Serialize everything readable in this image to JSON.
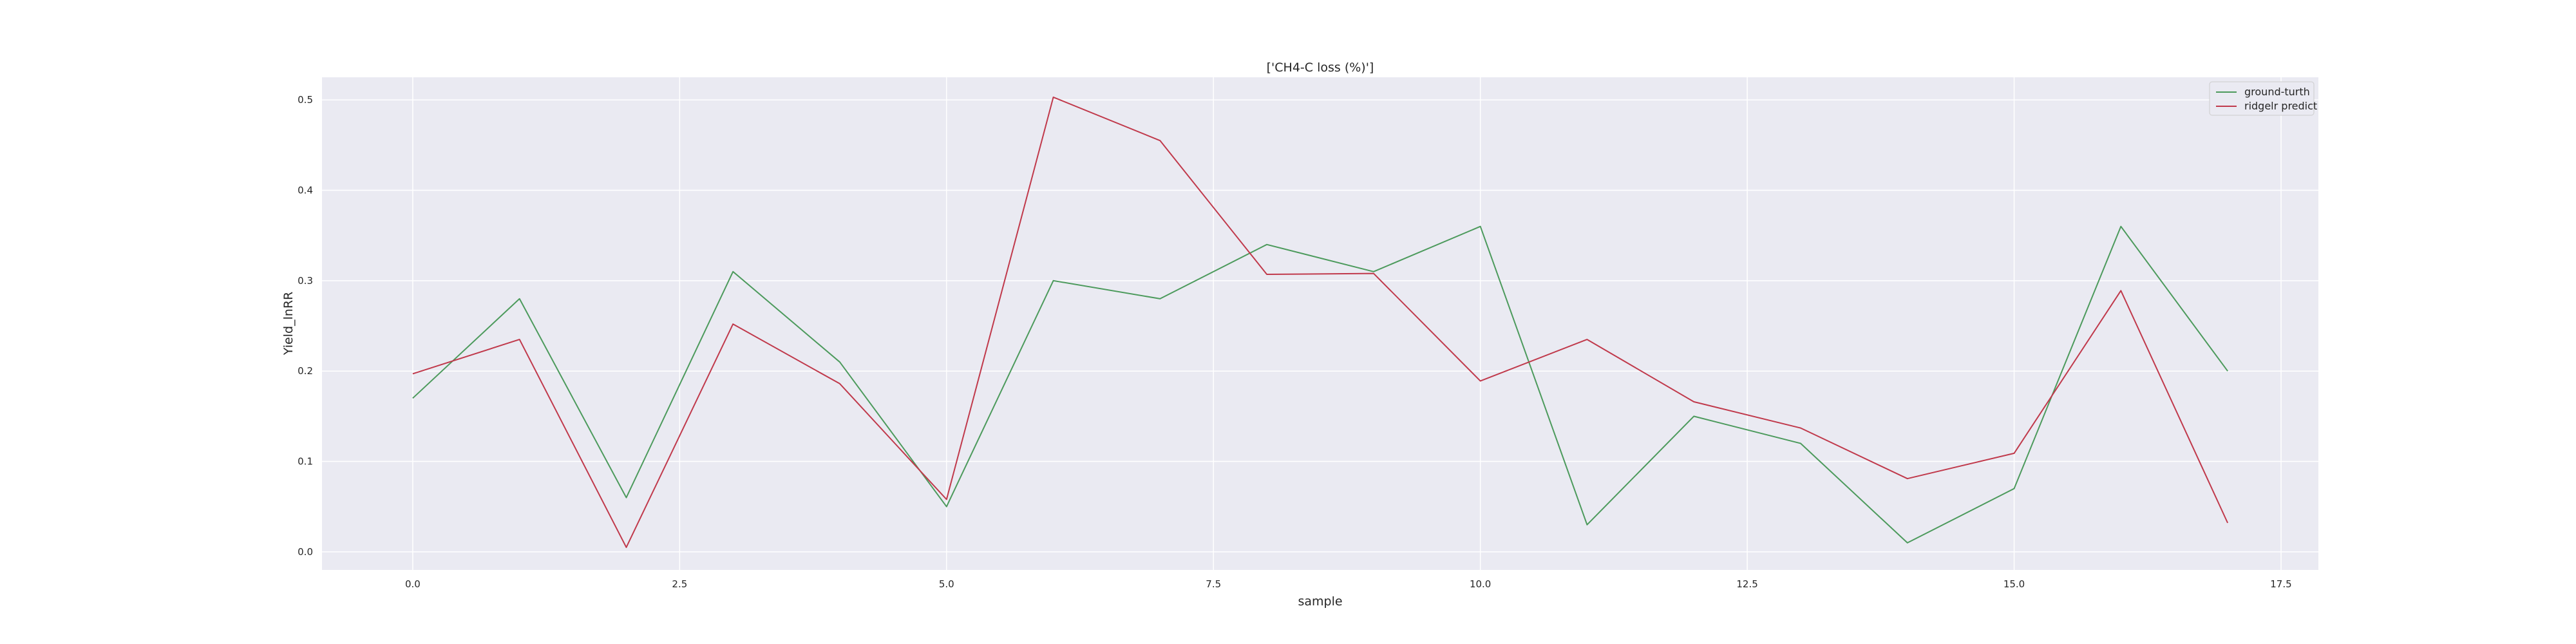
{
  "chart_data": {
    "type": "line",
    "title": "['CH4-C loss (%)']",
    "xlabel": "sample",
    "ylabel": "Yield_lnRR",
    "xlim": [
      -0.85,
      17.85
    ],
    "ylim": [
      -0.02,
      0.525
    ],
    "xticks": [
      0.0,
      2.5,
      5.0,
      7.5,
      10.0,
      12.5,
      15.0,
      17.5
    ],
    "xtick_labels": [
      "0.0",
      "2.5",
      "5.0",
      "7.5",
      "10.0",
      "12.5",
      "15.0",
      "17.5"
    ],
    "yticks": [
      0.0,
      0.1,
      0.2,
      0.3,
      0.4,
      0.5
    ],
    "ytick_labels": [
      "0.0",
      "0.1",
      "0.2",
      "0.3",
      "0.4",
      "0.5"
    ],
    "grid": true,
    "legend_position": "top-right",
    "x": [
      0,
      1,
      2,
      3,
      4,
      5,
      6,
      7,
      8,
      9,
      10,
      11,
      12,
      13,
      14,
      15,
      16,
      17
    ],
    "series": [
      {
        "name": "ground-turth",
        "color": "#4c9a5c",
        "values": [
          0.17,
          0.28,
          0.06,
          0.31,
          0.21,
          0.05,
          0.3,
          0.28,
          0.34,
          0.31,
          0.36,
          0.03,
          0.15,
          0.12,
          0.01,
          0.07,
          0.36,
          0.2
        ]
      },
      {
        "name": "ridgelr predict",
        "color": "#c0394b",
        "values": [
          0.197,
          0.235,
          0.005,
          0.252,
          0.186,
          0.058,
          0.503,
          0.455,
          0.307,
          0.308,
          0.189,
          0.235,
          0.166,
          0.137,
          0.081,
          0.109,
          0.289,
          0.032
        ]
      }
    ],
    "colors": {
      "plot_background": "#eaeaf2",
      "grid": "#ffffff",
      "legend_background": "#eaeaf2",
      "legend_border": "#cccccc"
    }
  }
}
